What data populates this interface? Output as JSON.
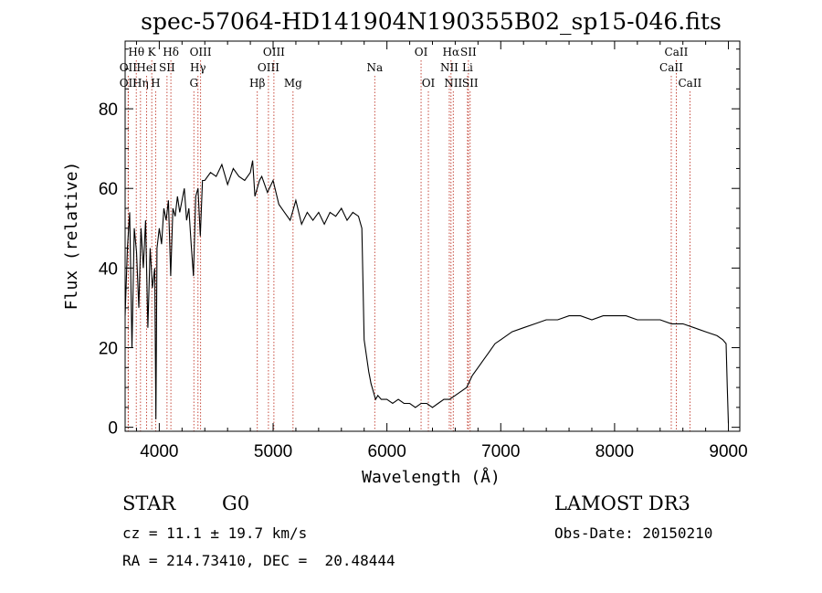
{
  "chart_data": {
    "type": "line",
    "title": "spec-57064-HD141904N190355B02_sp15-046.fits",
    "xlabel": "Wavelength (Å)",
    "ylabel": "Flux (relative)",
    "xlim": [
      3700,
      9100
    ],
    "ylim": [
      -1,
      97
    ],
    "x_ticks": [
      4000,
      5000,
      6000,
      7000,
      8000,
      9000
    ],
    "y_ticks": [
      0,
      20,
      40,
      60,
      80
    ],
    "series": [
      {
        "x": [
          3700,
          3720,
          3740,
          3760,
          3780,
          3800,
          3820,
          3840,
          3860,
          3880,
          3900,
          3920,
          3940,
          3960,
          3970,
          3980,
          4000,
          4020,
          4040,
          4060,
          4080,
          4100,
          4120,
          4140,
          4160,
          4180,
          4200,
          4220,
          4240,
          4260,
          4280,
          4300,
          4320,
          4340,
          4360,
          4380,
          4400,
          4450,
          4500,
          4550,
          4600,
          4650,
          4700,
          4750,
          4800,
          4820,
          4840,
          4860,
          4880,
          4900,
          4950,
          5000,
          5050,
          5100,
          5150,
          5200,
          5250,
          5300,
          5350,
          5400,
          5450,
          5500,
          5550,
          5600,
          5650,
          5700,
          5750,
          5780,
          5800,
          5820,
          5840,
          5860,
          5880,
          5900,
          5920,
          5950,
          6000,
          6050,
          6100,
          6150,
          6200,
          6250,
          6300,
          6350,
          6400,
          6450,
          6500,
          6550,
          6600,
          6650,
          6700,
          6750,
          6800,
          6850,
          6900,
          6950,
          7000,
          7100,
          7200,
          7300,
          7400,
          7500,
          7600,
          7700,
          7800,
          7900,
          8000,
          8100,
          8200,
          8300,
          8400,
          8500,
          8600,
          8700,
          8800,
          8900,
          8950,
          8980,
          8990,
          9000
        ],
        "y": [
          28,
          45,
          54,
          20,
          50,
          44,
          30,
          50,
          40,
          52,
          25,
          45,
          35,
          40,
          2,
          45,
          50,
          46,
          55,
          52,
          57,
          38,
          55,
          53,
          58,
          54,
          57,
          60,
          52,
          55,
          46,
          38,
          58,
          60,
          48,
          62,
          62,
          64,
          63,
          66,
          61,
          65,
          63,
          62,
          64,
          67,
          58,
          60,
          62,
          63,
          59,
          62,
          56,
          54,
          52,
          57,
          51,
          54,
          52,
          54,
          51,
          54,
          53,
          55,
          52,
          54,
          53,
          50,
          22,
          18,
          14,
          11,
          9,
          7,
          8,
          7,
          7,
          6,
          7,
          6,
          6,
          5,
          6,
          6,
          5,
          6,
          7,
          7,
          8,
          9,
          10,
          13,
          15,
          17,
          19,
          21,
          22,
          24,
          25,
          26,
          27,
          27,
          28,
          28,
          27,
          28,
          28,
          28,
          27,
          27,
          27,
          26,
          26,
          25,
          24,
          23,
          22,
          21,
          10,
          1
        ]
      }
    ],
    "spectral_lines": [
      {
        "label": "Hθ",
        "x": 3798,
        "row": 1
      },
      {
        "label": "OII",
        "x": 3727,
        "row": 2
      },
      {
        "label": "OII",
        "x": 3727,
        "row": 3
      },
      {
        "label": "Hη",
        "x": 3835,
        "row": 3
      },
      {
        "label": "HeI",
        "x": 3889,
        "row": 2
      },
      {
        "label": "K",
        "x": 3934,
        "row": 1
      },
      {
        "label": "H",
        "x": 3968,
        "row": 3
      },
      {
        "label": "SII",
        "x": 4068,
        "row": 2
      },
      {
        "label": "Hδ",
        "x": 4102,
        "row": 1
      },
      {
        "label": "OIII",
        "x": 4363,
        "row": 1
      },
      {
        "label": "Hγ",
        "x": 4340,
        "row": 2
      },
      {
        "label": "G",
        "x": 4304,
        "row": 3
      },
      {
        "label": "Hβ",
        "x": 4861,
        "row": 3
      },
      {
        "label": "OIII",
        "x": 4959,
        "row": 2
      },
      {
        "label": "OIII",
        "x": 5007,
        "row": 1
      },
      {
        "label": "Mg",
        "x": 5175,
        "row": 3
      },
      {
        "label": "Na",
        "x": 5893,
        "row": 2
      },
      {
        "label": "OI",
        "x": 6300,
        "row": 1
      },
      {
        "label": "OI",
        "x": 6364,
        "row": 3
      },
      {
        "label": "Hα",
        "x": 6563,
        "row": 1
      },
      {
        "label": "NII",
        "x": 6548,
        "row": 2
      },
      {
        "label": "NII",
        "x": 6583,
        "row": 3
      },
      {
        "label": "SII",
        "x": 6716,
        "row": 1
      },
      {
        "label": "Li",
        "x": 6708,
        "row": 2
      },
      {
        "label": "SII",
        "x": 6731,
        "row": 3
      },
      {
        "label": "CaII",
        "x": 8542,
        "row": 1
      },
      {
        "label": "CaII",
        "x": 8498,
        "row": 2
      },
      {
        "label": "CaII",
        "x": 8662,
        "row": 3
      }
    ],
    "grid": false,
    "legend": "none"
  },
  "info": {
    "object_class": "STAR",
    "subclass": "G0",
    "survey": "LAMOST DR3",
    "redshift": "cz = 11.1 ± 19.7 km/s",
    "obs_date": "Obs-Date: 20150210",
    "coords": "RA = 214.73410, DEC =  20.48444"
  },
  "colors": {
    "line_marker": "#c0392b",
    "spectrum": "#000000"
  }
}
